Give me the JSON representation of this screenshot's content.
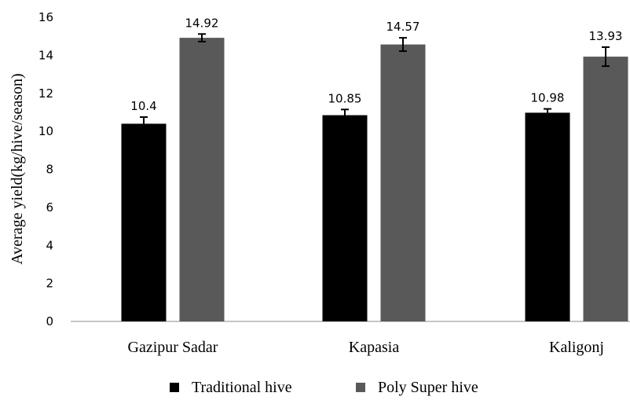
{
  "chart_data": {
    "type": "bar",
    "title": "",
    "xlabel": "",
    "ylabel": "Average yield(kg/hive/season)",
    "ylim": [
      0,
      16
    ],
    "yticks": [
      0,
      2,
      4,
      6,
      8,
      10,
      12,
      14,
      16
    ],
    "categories": [
      "Gazipur Sadar",
      "Kapasia",
      "Kaligonj"
    ],
    "series": [
      {
        "name": "Traditional hive",
        "color": "#000000",
        "values": [
          10.4,
          10.85,
          10.98
        ],
        "labels": [
          "10.4",
          "10.85",
          "10.98"
        ],
        "errors": [
          0.35,
          0.3,
          0.2
        ]
      },
      {
        "name": "Poly Super hive",
        "color": "#595959",
        "values": [
          14.92,
          14.57,
          13.93
        ],
        "labels": [
          "14.92",
          "14.57",
          "13.93"
        ],
        "errors": [
          0.2,
          0.35,
          0.5
        ]
      }
    ],
    "legend": "bottom",
    "grid": false
  }
}
